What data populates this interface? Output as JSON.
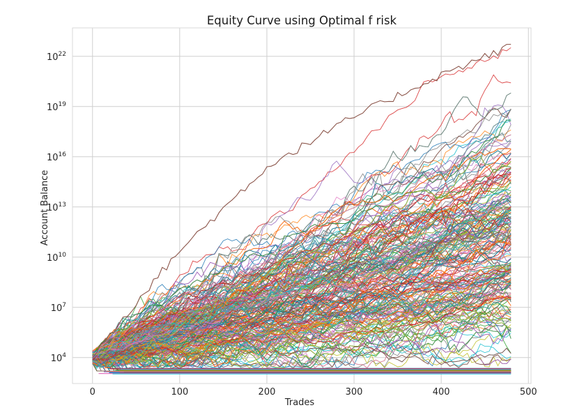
{
  "chart_data": {
    "type": "line",
    "title": "Equity Curve using Optimal f risk",
    "xlabel": "Trades",
    "ylabel": "Account Balance",
    "x_range": [
      0,
      480
    ],
    "xlim": [
      -23,
      503
    ],
    "ylim_log10": [
      2.45,
      23.7
    ],
    "yscale": "log",
    "grid": true,
    "legend": "none",
    "x_ticks": [
      0,
      100,
      200,
      300,
      400,
      500
    ],
    "y_ticks": [
      {
        "base": "10",
        "exp": "4",
        "log10": 4
      },
      {
        "base": "10",
        "exp": "7",
        "log10": 7
      },
      {
        "base": "10",
        "exp": "10",
        "log10": 10
      },
      {
        "base": "10",
        "exp": "13",
        "log10": 13
      },
      {
        "base": "10",
        "exp": "16",
        "log10": 16
      },
      {
        "base": "10",
        "exp": "19",
        "log10": 19
      },
      {
        "base": "10",
        "exp": "22",
        "log10": 22
      }
    ],
    "series_summary": {
      "count": 1000,
      "start_value": 10000,
      "ruin_floor_log10": 3.2,
      "envelope_max_log10": [
        {
          "x": 0,
          "y": 4.3
        },
        {
          "x": 100,
          "y": 10.5
        },
        {
          "x": 200,
          "y": 15.5
        },
        {
          "x": 300,
          "y": 18.5
        },
        {
          "x": 400,
          "y": 21.0
        },
        {
          "x": 480,
          "y": 22.7
        }
      ],
      "envelope_min_log10": [
        {
          "x": 0,
          "y": 3.3
        },
        {
          "x": 100,
          "y": 3.3
        },
        {
          "x": 200,
          "y": 3.4
        },
        {
          "x": 300,
          "y": 3.6
        },
        {
          "x": 400,
          "y": 3.8
        },
        {
          "x": 480,
          "y": 3.5
        }
      ]
    },
    "palette": [
      "#1f77b4",
      "#ff7f0e",
      "#2ca02c",
      "#d62728",
      "#9467bd",
      "#8c564b",
      "#e377c2",
      "#7f7f7f",
      "#bcbd22",
      "#17becf"
    ]
  }
}
